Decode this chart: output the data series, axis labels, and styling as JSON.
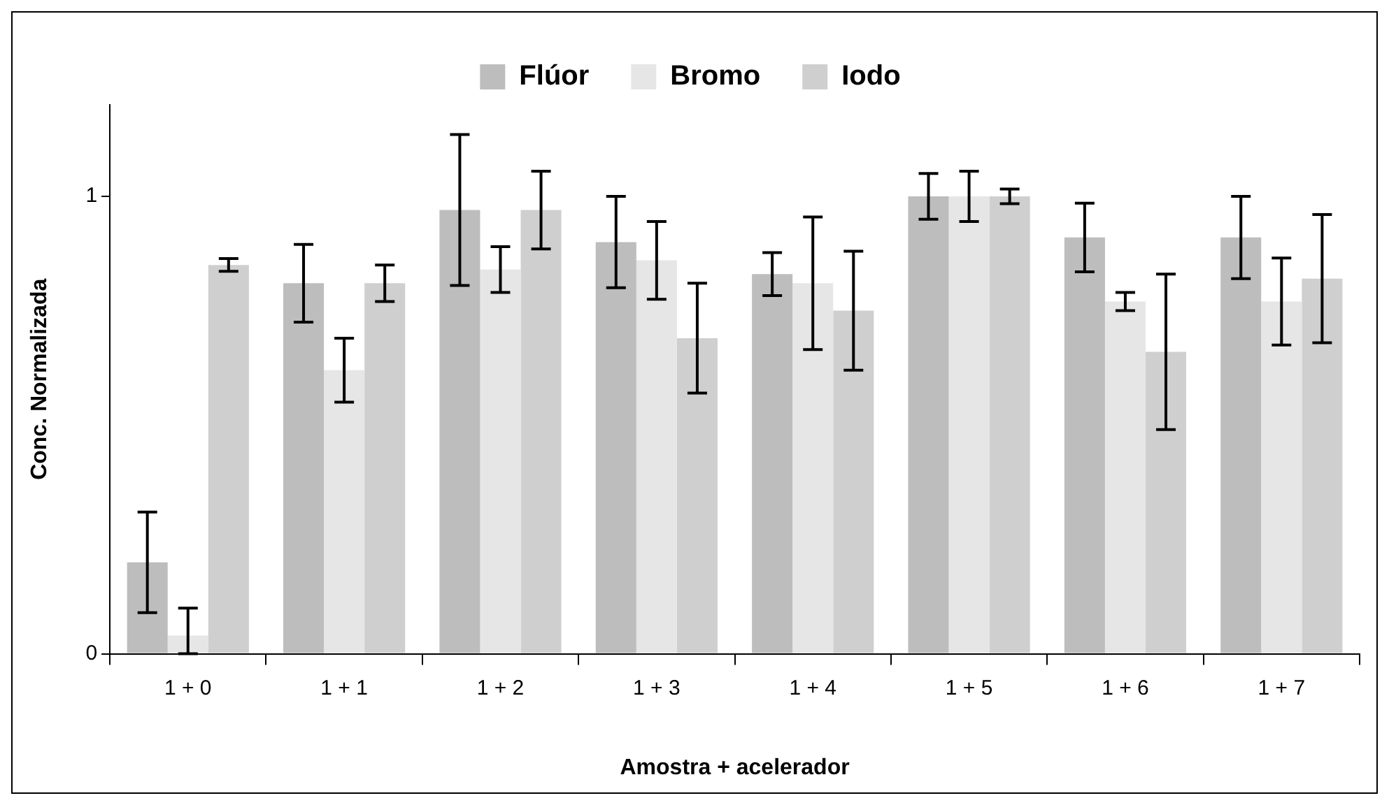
{
  "chart_data": {
    "type": "bar",
    "xlabel": "Amostra + acelerador",
    "ylabel": "Conc. Normalizada",
    "categories": [
      "1 + 0",
      "1 + 1",
      "1 + 2",
      "1 + 3",
      "1 + 4",
      "1 + 5",
      "1 + 6",
      "1 + 7"
    ],
    "series": [
      {
        "name": "Flúor",
        "color": "#bdbdbd",
        "values": [
          0.2,
          0.81,
          0.97,
          0.9,
          0.83,
          1.0,
          0.91,
          0.91
        ],
        "errors": [
          0.11,
          0.085,
          0.165,
          0.1,
          0.047,
          0.05,
          0.075,
          0.09
        ]
      },
      {
        "name": "Bromo",
        "color": "#e6e6e6",
        "values": [
          0.04,
          0.62,
          0.84,
          0.86,
          0.81,
          1.0,
          0.77,
          0.77
        ],
        "errors": [
          [
            0,
            0.1
          ],
          0.07,
          0.05,
          0.085,
          0.145,
          0.055,
          0.02,
          0.095
        ]
      },
      {
        "name": "Iodo",
        "color": "#cfcfcf",
        "values": [
          0.85,
          0.81,
          0.97,
          0.69,
          0.75,
          1.0,
          0.66,
          0.82
        ],
        "errors": [
          0.014,
          0.04,
          0.085,
          0.12,
          0.13,
          0.016,
          0.17,
          0.14
        ]
      }
    ],
    "ylim": [
      0,
      1.2
    ],
    "yticks": [
      0,
      1
    ],
    "grid": false,
    "legend": "top"
  }
}
